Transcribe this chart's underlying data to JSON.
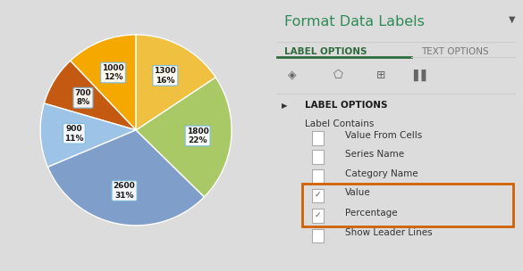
{
  "slices": [
    {
      "value": 1000,
      "pct": 12,
      "color": "#F5A800"
    },
    {
      "value": 700,
      "pct": 8,
      "color": "#C45911"
    },
    {
      "value": 900,
      "pct": 11,
      "color": "#9DC3E6"
    },
    {
      "value": 2600,
      "pct": 31,
      "color": "#7F9FCA"
    },
    {
      "value": 1800,
      "pct": 22,
      "color": "#A9C966"
    },
    {
      "value": 1300,
      "pct": 16,
      "color": "#F0C040"
    }
  ],
  "startangle": 90,
  "title_text": "Format Data Labels",
  "title_color": "#2E8B57",
  "tab1": "LABEL OPTIONS",
  "tab2": "TEXT OPTIONS",
  "tab1_color": "#2E6B3E",
  "tab2_color": "#777777",
  "section_title": "LABEL OPTIONS",
  "label_contains": "Label Contains",
  "checkboxes_unchecked": [
    "Value From Cells",
    "Series Name",
    "Category Name"
  ],
  "checkboxes_checked": [
    "Value",
    "Percentage"
  ],
  "checkbox_unchecked_last": [
    "Show Leader Lines"
  ],
  "orange_border_color": "#D06000",
  "checkbox_edge_color": "#AAAAAA",
  "line_color": "#CCCCCC",
  "text_color": "#333333",
  "label_text_color": "#1A1A1A",
  "checkmark_color": "#555555",
  "right_panel_bg": "#FAFAFA",
  "left_panel_bg": "#FFFFFF",
  "fig_bg": "#DCDCDC"
}
